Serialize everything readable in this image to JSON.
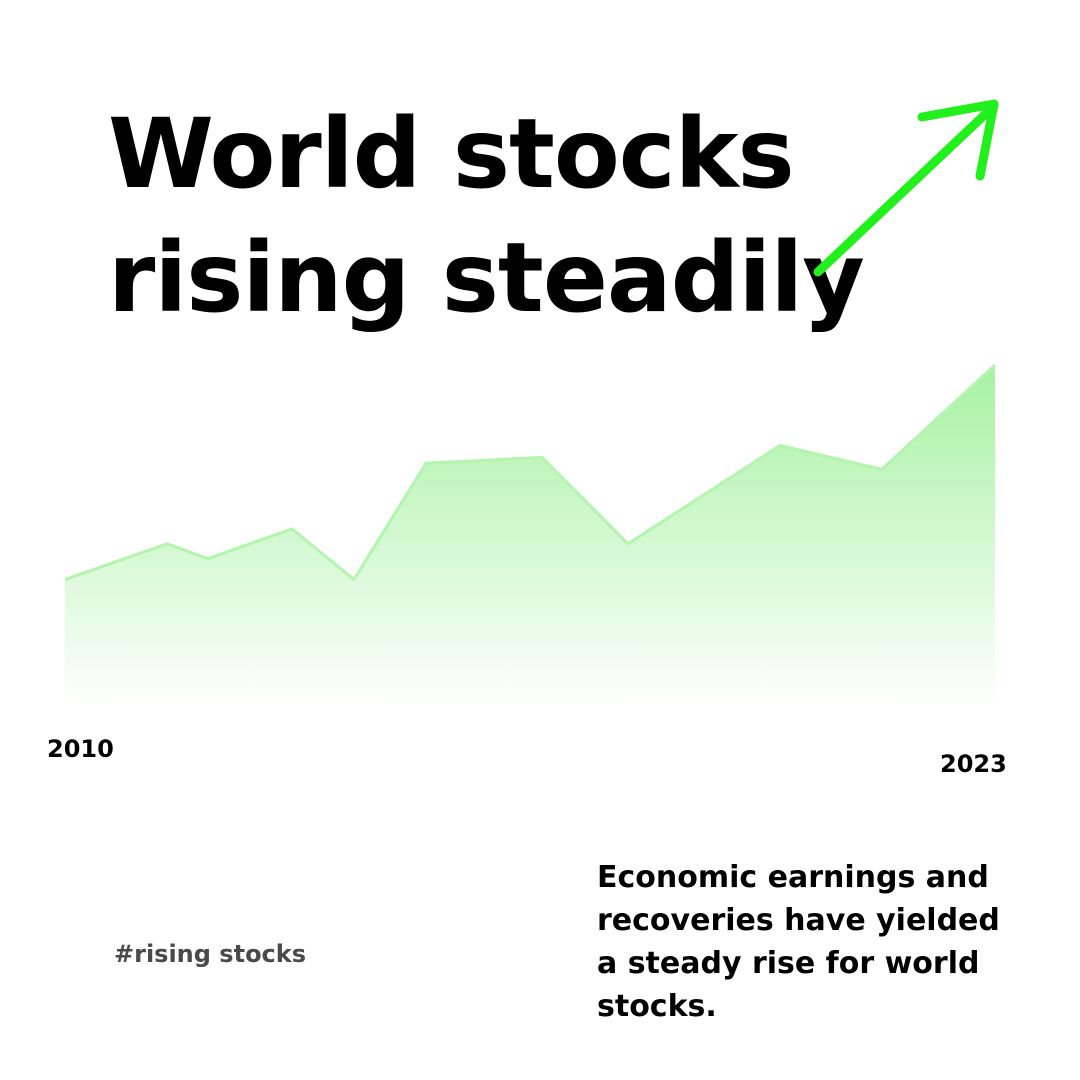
{
  "headline": {
    "line1": "World stocks",
    "line2": "rising steadily"
  },
  "arrow_icon": "trend-up-arrow",
  "colors": {
    "arrow": "#22f01c",
    "area_top": "#a7f2a2",
    "area_bottom": "#ffffff",
    "area_line": "#b3f5ae",
    "text": "#000000",
    "hashtag": "#4a4a4a"
  },
  "chart_data": {
    "type": "area",
    "x_start_label": "2010",
    "x_end_label": "2023",
    "values": [
      28,
      40,
      35,
      45,
      28,
      67,
      69,
      40,
      73,
      65,
      100
    ],
    "ylim": [
      0,
      100
    ],
    "grid": false
  },
  "hashtag": "#rising stocks",
  "description": "Economic earnings and recoveries have yielded a steady rise for world stocks."
}
